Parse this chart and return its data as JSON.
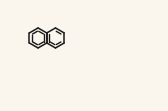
{
  "bg_color": "#faf6ee",
  "line_color": "#1a1a1a",
  "lw": 1.1,
  "figsize": [
    1.68,
    1.11
  ],
  "dpi": 100
}
